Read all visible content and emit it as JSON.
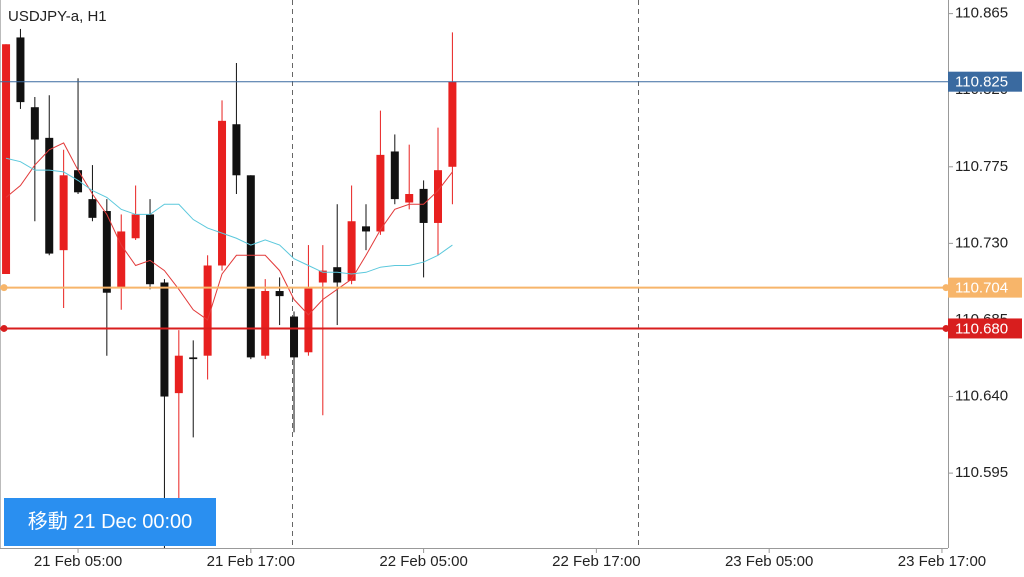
{
  "chart_data": {
    "type": "candlestick",
    "title": "USDJPY-a, H1",
    "x": [
      0,
      1,
      2,
      3,
      4,
      5,
      6,
      7,
      8,
      9,
      10,
      11,
      12,
      13,
      14,
      15,
      16,
      17,
      18,
      19,
      20,
      21,
      22,
      23,
      24,
      25,
      26,
      27,
      28,
      29,
      30,
      31
    ],
    "open": [
      110.712,
      110.851,
      110.81,
      110.792,
      110.726,
      110.773,
      110.756,
      110.749,
      110.704,
      110.733,
      110.747,
      110.707,
      110.642,
      110.663,
      110.664,
      110.717,
      110.8,
      110.77,
      110.664,
      110.702,
      110.687,
      110.666,
      110.707,
      110.716,
      110.708,
      110.74,
      110.737,
      110.784,
      110.754,
      110.762,
      110.742,
      110.775
    ],
    "high": [
      110.847,
      110.856,
      110.816,
      110.817,
      110.785,
      110.827,
      110.776,
      110.756,
      110.747,
      110.764,
      110.756,
      110.709,
      110.679,
      110.673,
      110.723,
      110.814,
      110.836,
      110.77,
      110.709,
      110.71,
      110.69,
      110.729,
      110.729,
      110.753,
      110.764,
      110.753,
      110.808,
      110.794,
      110.788,
      110.767,
      110.798,
      110.854
    ],
    "low": [
      110.712,
      110.809,
      110.743,
      110.723,
      110.692,
      110.759,
      110.743,
      110.664,
      110.691,
      110.732,
      110.703,
      110.551,
      110.556,
      110.616,
      110.65,
      110.714,
      110.759,
      110.662,
      110.662,
      110.682,
      110.619,
      110.664,
      110.629,
      110.682,
      110.706,
      110.726,
      110.735,
      110.753,
      110.75,
      110.71,
      110.723,
      110.753
    ],
    "close": [
      110.847,
      110.813,
      110.791,
      110.724,
      110.77,
      110.76,
      110.745,
      110.701,
      110.737,
      110.747,
      110.706,
      110.64,
      110.664,
      110.662,
      110.717,
      110.802,
      110.77,
      110.663,
      110.702,
      110.699,
      110.663,
      110.704,
      110.714,
      110.707,
      110.743,
      110.737,
      110.782,
      110.756,
      110.759,
      110.742,
      110.773,
      110.825
    ],
    "up_color": "#e8201f",
    "down_color": "#111111",
    "overlays": [
      {
        "color": "#e23a3a",
        "values": [
          110.757,
          110.764,
          110.776,
          110.785,
          110.789,
          110.773,
          110.759,
          110.747,
          110.729,
          110.717,
          110.72,
          110.714,
          110.703,
          110.691,
          110.685,
          110.712,
          110.723,
          110.723,
          110.723,
          110.714,
          110.697,
          110.688,
          110.697,
          110.703,
          110.709,
          110.723,
          110.738,
          110.75,
          110.753,
          110.753,
          110.761,
          110.772
        ]
      },
      {
        "color": "#5bc8dc",
        "values": [
          110.78,
          110.778,
          110.773,
          110.773,
          110.772,
          110.767,
          110.761,
          110.757,
          110.75,
          110.747,
          110.747,
          110.753,
          110.753,
          110.744,
          110.739,
          110.736,
          110.733,
          110.729,
          110.732,
          110.729,
          110.721,
          110.717,
          110.713,
          110.713,
          110.712,
          110.713,
          110.716,
          110.717,
          110.717,
          110.719,
          110.723,
          110.729
        ]
      }
    ],
    "levels": [
      {
        "value": 110.825,
        "label": "110.825",
        "color": "#3a6aa0"
      },
      {
        "value": 110.704,
        "label": "110.704",
        "color": "#f7b56a"
      },
      {
        "value": 110.68,
        "label": "110.680",
        "color": "#d81e1e"
      }
    ],
    "xlim": [
      -0.42,
      65.42
    ],
    "xticks": [
      {
        "value": 5,
        "label": "21 Feb 05:00"
      },
      {
        "value": 17,
        "label": "21 Feb 17:00"
      },
      {
        "value": 29,
        "label": "22 Feb 05:00"
      },
      {
        "value": 41,
        "label": "22 Feb 17:00"
      },
      {
        "value": 53,
        "label": "23 Feb 05:00"
      },
      {
        "value": 65,
        "label": "23 Feb 17:00"
      }
    ],
    "ylim": [
      110.551,
      110.873
    ],
    "yticks": [
      110.865,
      {
        "value": 110.82,
        "label": "110.820"
      },
      110.775,
      {
        "value": 110.73,
        "label": "110.730"
      },
      110.685,
      {
        "value": 110.64,
        "label": "110.640"
      },
      110.595
    ]
  },
  "button": {
    "label": "移動 21 Dec 00:00"
  }
}
